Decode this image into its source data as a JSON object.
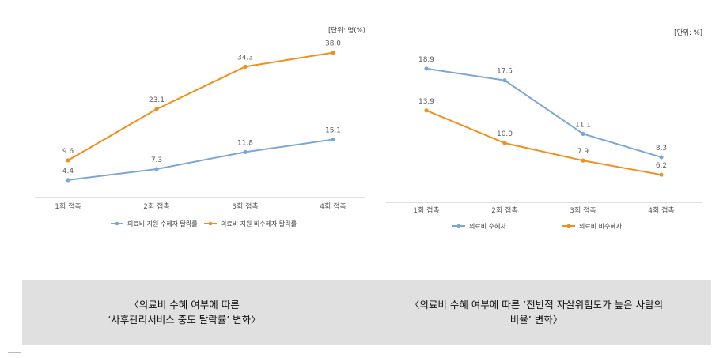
{
  "chart_data": [
    {
      "type": "line",
      "categories": [
        "1회 접촉",
        "2회 접촉",
        "3회 접촉",
        "4회 접촉"
      ],
      "unit_label": "[단위: 명(%)",
      "ylim": [
        0,
        40
      ],
      "grid": false,
      "legend": "bottom",
      "series": [
        {
          "name": "의료비 지원 수혜자 탈락률",
          "color": "#7aa7d6",
          "values": [
            4.4,
            7.3,
            11.8,
            15.1
          ]
        },
        {
          "name": "의료비 지원 비수혜자 탈락률",
          "color": "#f28e1c",
          "values": [
            9.6,
            23.1,
            34.3,
            38.0
          ]
        }
      ],
      "title": "〈의료비 수혜 여부에 따른\n‘사후관리서비스 중도 탈락률’ 변화〉"
    },
    {
      "type": "line",
      "categories": [
        "1회 접촉",
        "2회 접촉",
        "3회 접촉",
        "4회 접촉"
      ],
      "unit_label": "[단위: %]",
      "ylim": [
        3,
        24
      ],
      "grid": false,
      "legend": "bottom",
      "series": [
        {
          "name": "의료비 수혜자",
          "color": "#7aa7d6",
          "values": [
            18.9,
            17.5,
            11.1,
            8.3
          ]
        },
        {
          "name": "의료비 비수혜자",
          "color": "#f28e1c",
          "values": [
            13.9,
            10.0,
            7.9,
            6.2
          ]
        }
      ],
      "title": "〈의료비 수혜 여부에 따른 ‘전반적 자살위험도가 높은 사람의\n비율’ 변화〉"
    }
  ]
}
